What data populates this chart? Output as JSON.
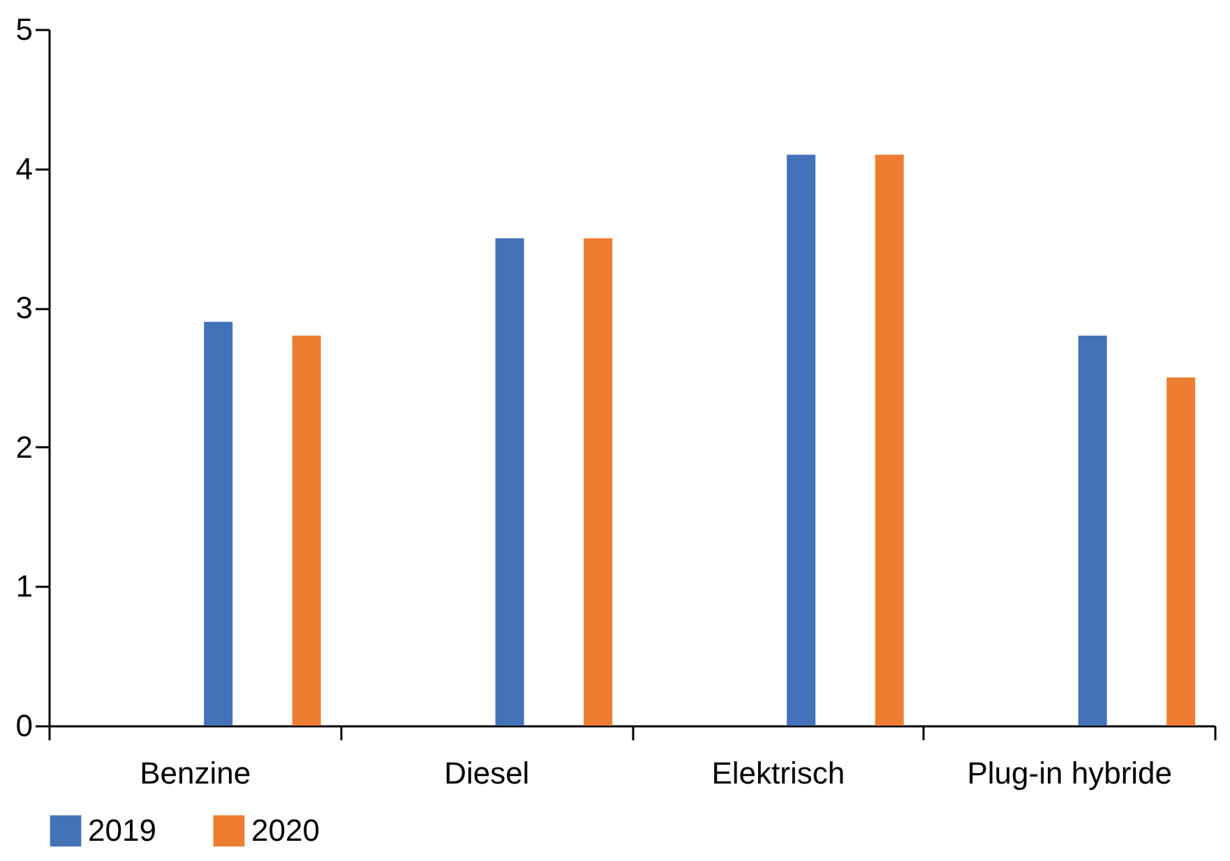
{
  "chart_data": {
    "type": "bar",
    "categories": [
      "Benzine",
      "Diesel",
      "Elektrisch",
      "Plug-in hybride"
    ],
    "series": [
      {
        "name": "2019",
        "color": "#4472b8",
        "values": [
          2.9,
          3.5,
          4.1,
          2.8
        ]
      },
      {
        "name": "2020",
        "color": "#ed7d31",
        "values": [
          2.8,
          3.5,
          4.1,
          2.5
        ]
      }
    ],
    "ylim": [
      0,
      5
    ],
    "yticks": [
      0,
      1,
      2,
      3,
      4,
      5
    ],
    "grid": false,
    "legend": "bottom"
  }
}
